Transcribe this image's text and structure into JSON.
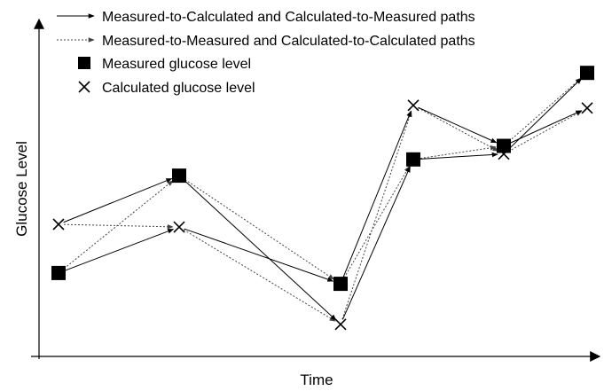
{
  "axes": {
    "ylabel": "Glucose Level",
    "xlabel": "Time"
  },
  "legend": {
    "solid_paths": "Measured-to-Calculated and Calculated-to-Measured paths",
    "dotted_paths": "Measured-to-Measured and Calculated-to-Calculated paths",
    "measured": "Measured glucose level",
    "calculated": "Calculated glucose level"
  },
  "colors": {
    "ink": "#000000",
    "dotted": "#555555"
  },
  "chart_data": {
    "type": "line",
    "x": [
      1,
      2,
      3,
      4,
      5,
      6
    ],
    "series": [
      {
        "name": "Measured glucose level",
        "marker": "square",
        "values": [
          2.2,
          5.8,
          1.8,
          6.4,
          6.9,
          9.6
        ]
      },
      {
        "name": "Calculated glucose level",
        "marker": "x",
        "values": [
          4.0,
          3.9,
          0.3,
          8.4,
          6.6,
          8.3
        ]
      }
    ],
    "paths": {
      "solid": [
        [
          "M1",
          "C2"
        ],
        [
          "C1",
          "M2"
        ],
        [
          "M2",
          "C3"
        ],
        [
          "C2",
          "M3"
        ],
        [
          "M3",
          "C4"
        ],
        [
          "C3",
          "M4"
        ],
        [
          "M4",
          "C5"
        ],
        [
          "C4",
          "M5"
        ],
        [
          "M5",
          "C6"
        ],
        [
          "C5",
          "M6"
        ]
      ],
      "dotted": [
        [
          "M1",
          "M2"
        ],
        [
          "C1",
          "C2"
        ],
        [
          "M2",
          "M3"
        ],
        [
          "C2",
          "C3"
        ],
        [
          "M3",
          "M4"
        ],
        [
          "C3",
          "C4"
        ],
        [
          "M4",
          "M5"
        ],
        [
          "C4",
          "C5"
        ],
        [
          "M5",
          "M6"
        ],
        [
          "C5",
          "C6"
        ]
      ]
    },
    "grid": false,
    "legend_position": "top"
  }
}
